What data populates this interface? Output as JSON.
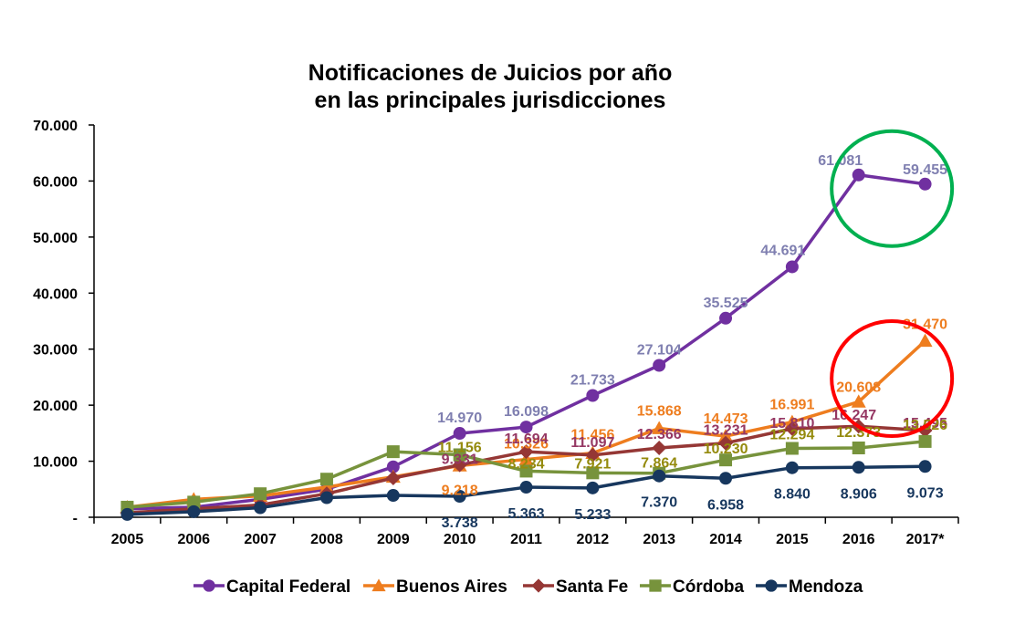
{
  "chart_data": {
    "type": "line",
    "title": [
      "Notificaciones de Juicios por año",
      "en las principales jurisdicciones"
    ],
    "categories": [
      "2005",
      "2006",
      "2007",
      "2008",
      "2009",
      "2010",
      "2011",
      "2012",
      "2013",
      "2014",
      "2015",
      "2016",
      "2017*"
    ],
    "ylim": [
      0,
      70000
    ],
    "yticks": [
      0,
      10000,
      20000,
      30000,
      40000,
      50000,
      60000,
      70000
    ],
    "ytick_labels": [
      "-",
      "10.000",
      "20.000",
      "30.000",
      "40.000",
      "50.000",
      "60.000",
      "70.000"
    ],
    "grid": false,
    "legend_position": "bottom",
    "series": [
      {
        "name": "Capital Federal",
        "color": "#7030a0",
        "label_color": "#7f7fb0",
        "marker": "circle",
        "values": [
          1500,
          1800,
          3200,
          5000,
          9000,
          14970,
          16098,
          21733,
          27104,
          35525,
          44691,
          61081,
          59455
        ],
        "labels": [
          "",
          "",
          "",
          "",
          "",
          "14.970",
          "16.098",
          "21.733",
          "27.104",
          "35.525",
          "44.691",
          "61.081",
          "59.455"
        ]
      },
      {
        "name": "Buenos Aires",
        "color": "#ee7d1f",
        "label_color": "#ee7d1f",
        "marker": "triangle",
        "values": [
          1800,
          3200,
          3800,
          5400,
          7200,
          9218,
          10326,
          11456,
          15868,
          14473,
          16991,
          20608,
          31470
        ],
        "labels": [
          "",
          "",
          "",
          "",
          "",
          "9.218",
          "10.326",
          "11.456",
          "15.868",
          "14.473",
          "16.991",
          "20.608",
          "31.470"
        ]
      },
      {
        "name": "Santa Fe",
        "color": "#953735",
        "label_color": "#953763",
        "marker": "diamond",
        "values": [
          800,
          1500,
          2200,
          4200,
          7000,
          9331,
          11694,
          11097,
          12366,
          13231,
          15810,
          16247,
          15495
        ],
        "labels": [
          "",
          "",
          "",
          "",
          "",
          "9.331",
          "11.694",
          "11.097",
          "12.366",
          "13.231",
          "15.810",
          "16.247",
          "15.495"
        ]
      },
      {
        "name": "Córdoba",
        "color": "#77933c",
        "label_color": "#948a0c",
        "marker": "square",
        "values": [
          1800,
          2700,
          4200,
          6800,
          11700,
          11156,
          8234,
          7921,
          7864,
          10230,
          12294,
          12373,
          13526
        ],
        "labels": [
          "",
          "",
          "",
          "",
          "",
          "11.156",
          "8.234",
          "7.921",
          "7.864",
          "10.230",
          "12.294",
          "12.373",
          "13.526"
        ]
      },
      {
        "name": "Mendoza",
        "color": "#17375e",
        "label_color": "#17375e",
        "marker": "circle",
        "values": [
          500,
          1000,
          1700,
          3500,
          3900,
          3738,
          5363,
          5233,
          7370,
          6958,
          8840,
          8906,
          9073
        ],
        "labels": [
          "",
          "",
          "",
          "",
          "",
          "3.738",
          "5.363",
          "5.233",
          "7.370",
          "6.958",
          "8.840",
          "8.906",
          "9.073"
        ]
      }
    ],
    "highlight_circles": [
      {
        "color": "#00b050",
        "around_series": "Capital Federal",
        "from": "2016",
        "to": "2017*"
      },
      {
        "color": "#ff0000",
        "around_series": "Buenos Aires",
        "from": "2016",
        "to": "2017*"
      }
    ]
  }
}
